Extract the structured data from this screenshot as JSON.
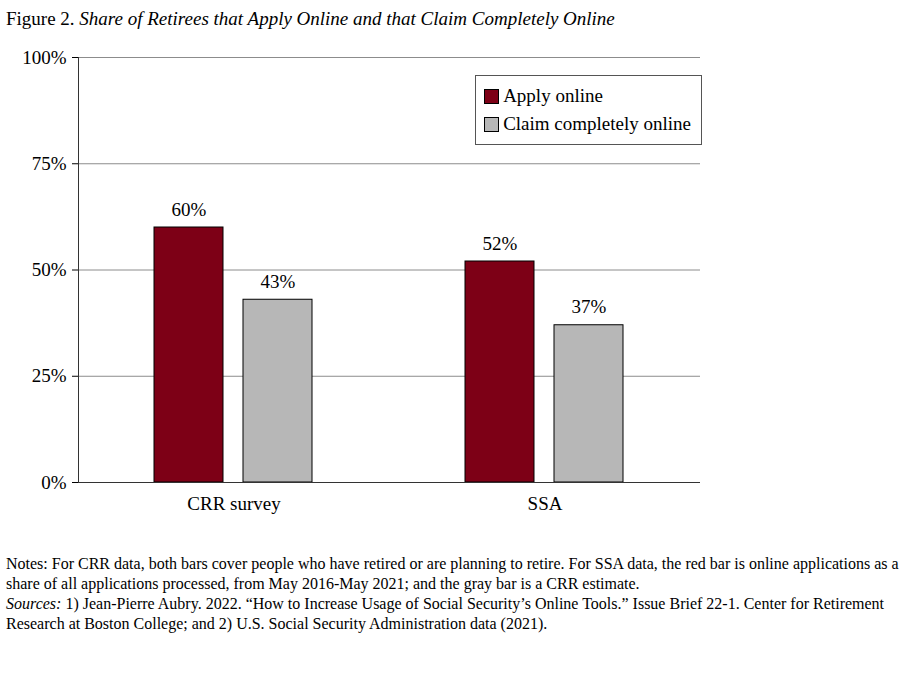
{
  "chart_data": {
    "type": "bar",
    "title": "Figure 2. Share of Retirees that Apply Online and that Claim Completely Online",
    "categories": [
      "CRR survey",
      "SSA"
    ],
    "series": [
      {
        "name": "Apply online",
        "color": "#7d0016",
        "values": [
          60,
          52
        ],
        "value_labels": [
          "60%",
          "52%"
        ]
      },
      {
        "name": "Claim completely online",
        "color": "#b7b7b7",
        "values": [
          43,
          37
        ],
        "value_labels": [
          "43%",
          "37%"
        ]
      }
    ],
    "ylim": [
      0,
      100
    ],
    "yticks": [
      {
        "value": 0,
        "label": "0%"
      },
      {
        "value": 25,
        "label": "25%"
      },
      {
        "value": 50,
        "label": "50%"
      },
      {
        "value": 75,
        "label": "75%"
      },
      {
        "value": 100,
        "label": "100%"
      }
    ],
    "grid": true,
    "legend": "top-right",
    "data_labels": true,
    "notes": "Notes: For CRR data, both bars cover people who have retired or are planning to retire.  For SSA data, the red bar is online applications as a share of all applications processed, from May 2016-May 2021; and the gray bar is a CRR estimate.",
    "sources": "Sources: 1) Jean-Pierre Aubry. 2022. “How to Increase Usage of Social Security’s Online Tools.” Issue Brief 22-1. Center for Retirement Research at Boston College; and 2) U.S. Social Security Administration data (2021)."
  }
}
